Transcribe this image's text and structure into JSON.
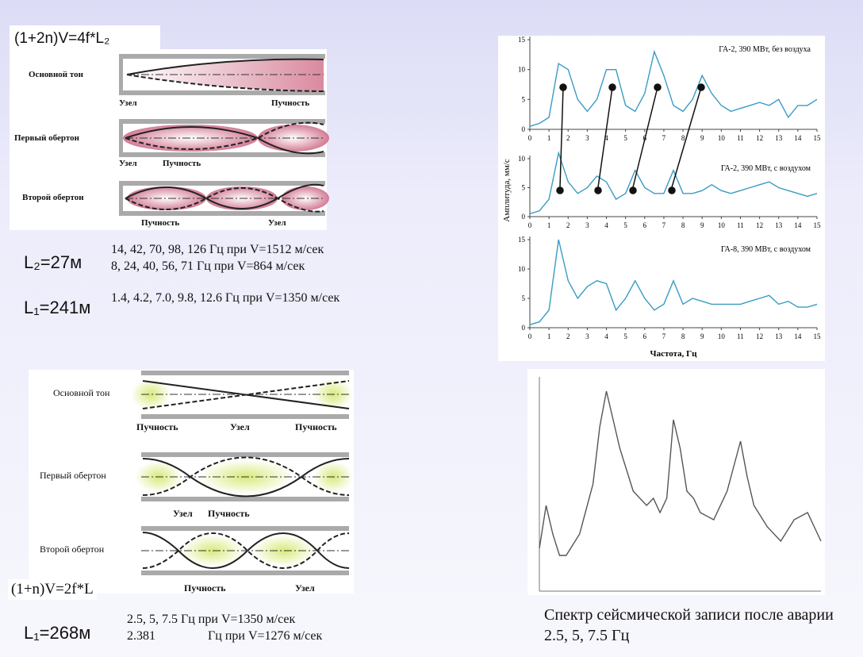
{
  "formula_top": "(1+2n)V=4f*L₂",
  "diagram_top": {
    "labels": [
      "Основной тон",
      "Узел",
      "Пучность",
      "Первый обертон",
      "Узел",
      "Пучность",
      "Второй обертон",
      "Пучность",
      "Узел"
    ]
  },
  "l2_label": "L₂=27м",
  "l2_lines": [
    "14, 42, 70, 98, 126 Гц при V=1512 м/сек",
    "8, 24, 40, 56, 71 Гц при V=864 м/сек"
  ],
  "l1_label": "L₁=241м",
  "l1_line": "1.4, 4.2, 7.0, 9.8, 12.6 Гц при V=1350 м/сек",
  "diagram_bottom": {
    "labels": [
      "Основной тон",
      "Пучность",
      "Узел",
      "Пучность",
      "Первый обертон",
      "Узел",
      "Пучность",
      "Второй обертон",
      "Пучность",
      "Узел"
    ]
  },
  "formula_bottom": "(1+n)V=2f*L",
  "l1b_label": "L₁=268м",
  "l1b_lines": [
    "2.5, 5, 7.5 Гц при V=1350 м/сек",
    "2.381",
    "Гц при V=1276 м/сек"
  ],
  "caption": "Спектр сейсмической записи после аварии 2.5, 5, 7.5 Гц",
  "spectrum": {
    "type": "line",
    "y_label": "Амплитуда, мм/с",
    "x_label": "Частота, Гц",
    "x": [
      0,
      0.5,
      1,
      1.5,
      2,
      2.5,
      3,
      3.5,
      4,
      4.5,
      5,
      5.5,
      6,
      6.5,
      7,
      7.5,
      8,
      8.5,
      9,
      9.5,
      10,
      10.5,
      11,
      11.5,
      12,
      12.5,
      13,
      13.5,
      14,
      14.5,
      15
    ],
    "xlim": [
      0,
      15
    ],
    "xticks": [
      0,
      1,
      2,
      3,
      4,
      5,
      6,
      7,
      8,
      9,
      10,
      11,
      12,
      13,
      14,
      15
    ],
    "panels": [
      {
        "title": "ГА-2, 390 МВт, без воздуха",
        "color": "#3a9bc4",
        "ylim": [
          0,
          15
        ],
        "yticks": [
          0,
          5,
          10,
          15
        ],
        "values": [
          0.5,
          1,
          2,
          11,
          10,
          5,
          3,
          5,
          10,
          10,
          4,
          3,
          6,
          13,
          9,
          4,
          3,
          5,
          9,
          6,
          4,
          3,
          3.5,
          4,
          4.5,
          4,
          5,
          2,
          4,
          4,
          5
        ]
      },
      {
        "title": "ГА-2, 390 МВт, с воздухом",
        "color": "#3a9bc4",
        "ylim": [
          0,
          10
        ],
        "yticks": [
          0,
          5,
          10
        ],
        "values": [
          0.5,
          1,
          3,
          11,
          6,
          4,
          5,
          7,
          6,
          3,
          4,
          8,
          5,
          4,
          4,
          8,
          4,
          4,
          4.5,
          5.5,
          4.5,
          4,
          4.5,
          5,
          5.5,
          6,
          5,
          4.5,
          4,
          3.5,
          4
        ]
      },
      {
        "title": "ГА-8, 390 МВт, с воздухом",
        "color": "#3a9bc4",
        "ylim": [
          0,
          15
        ],
        "yticks": [
          0,
          5,
          10,
          15
        ],
        "values": [
          0.5,
          1,
          3,
          15,
          8,
          5,
          7,
          8,
          7.5,
          3,
          5,
          8,
          5,
          3,
          4,
          8,
          4,
          5,
          4.5,
          4,
          4,
          4,
          4,
          4.5,
          5,
          5.5,
          4,
          4.5,
          3.5,
          3.5,
          4
        ]
      }
    ]
  },
  "seismic": {
    "type": "line",
    "color": "#555555",
    "x": [
      0,
      0.25,
      0.5,
      0.75,
      1,
      1.5,
      2,
      2.25,
      2.5,
      2.75,
      3,
      3.5,
      4,
      4.25,
      4.5,
      4.75,
      5,
      5.25,
      5.5,
      5.75,
      6,
      6.5,
      7,
      7.5,
      7.75,
      8,
      8.5,
      9,
      9.5,
      10,
      10.5
    ],
    "values": [
      6,
      12,
      8,
      5,
      5,
      8,
      15,
      23,
      28,
      24,
      20,
      14,
      12,
      13,
      11,
      13,
      24,
      20,
      14,
      13,
      11,
      10,
      14,
      21,
      16,
      12,
      9,
      7,
      10,
      11,
      7
    ],
    "xlim": [
      0,
      10.5
    ],
    "ylim": [
      0,
      30
    ]
  }
}
